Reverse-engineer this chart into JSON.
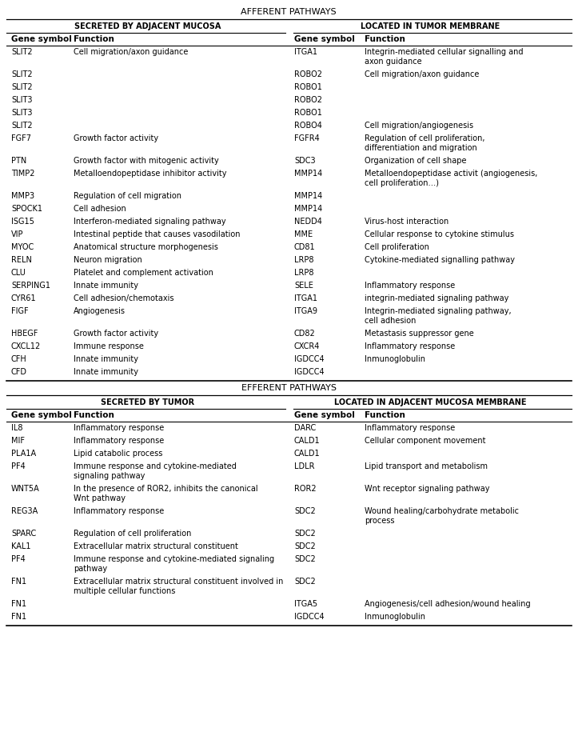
{
  "afferent_header": "AFFERENT PATHWAYS",
  "efferent_header": "EFFERENT PATHWAYS",
  "afferent_left_subheader": "SECRETED BY ADJACENT MUCOSA",
  "afferent_right_subheader": "LOCATED IN TUMOR MEMBRANE",
  "efferent_left_subheader": "SECRETED BY TUMOR",
  "efferent_right_subheader": "LOCATED IN ADJACENT MUCOSA MEMBRANE",
  "col_headers": [
    "Gene symbol",
    "Function",
    "Gene symbol",
    "Function"
  ],
  "afferent_rows": [
    [
      "SLIT2",
      "Cell migration/axon guidance",
      "ITGA1",
      "Integrin-mediated cellular signalling and\naxon guidance"
    ],
    [
      "SLIT2",
      "",
      "ROBO2",
      "Cell migration/axon guidance"
    ],
    [
      "SLIT2",
      "",
      "ROBO1",
      ""
    ],
    [
      "SLIT3",
      "",
      "ROBO2",
      ""
    ],
    [
      "SLIT3",
      "",
      "ROBO1",
      ""
    ],
    [
      "SLIT2",
      "",
      "ROBO4",
      "Cell migration/angiogenesis"
    ],
    [
      "FGF7",
      "Growth factor activity",
      "FGFR4",
      "Regulation of cell proliferation,\ndifferentiation and migration"
    ],
    [
      "PTN",
      "Growth factor with mitogenic activity",
      "SDC3",
      "Organization of cell shape"
    ],
    [
      "TIMP2",
      "Metalloendopeptidase inhibitor activity",
      "MMP14",
      "Metalloendopeptidase activit (angiogenesis,\ncell proliferation…)"
    ],
    [
      "MMP3",
      "Regulation of cell migration",
      "MMP14",
      ""
    ],
    [
      "SPOCK1",
      "Cell adhesion",
      "MMP14",
      ""
    ],
    [
      "ISG15",
      "Interferon-mediated signaling pathway",
      "NEDD4",
      "Virus-host interaction"
    ],
    [
      "VIP",
      "Intestinal peptide that causes vasodilation",
      "MME",
      "Cellular response to cytokine stimulus"
    ],
    [
      "MYOC",
      "Anatomical structure morphogenesis",
      "CD81",
      "Cell proliferation"
    ],
    [
      "RELN",
      "Neuron migration",
      "LRP8",
      "Cytokine-mediated signalling pathway"
    ],
    [
      "CLU",
      "Platelet and complement activation",
      "LRP8",
      ""
    ],
    [
      "SERPING1",
      "Innate immunity",
      "SELE",
      "Inflammatory response"
    ],
    [
      "CYR61",
      "Cell adhesion/chemotaxis",
      "ITGA1",
      "integrin-mediated signaling pathway"
    ],
    [
      "FIGF",
      "Angiogenesis",
      "ITGA9",
      "Integrin-mediated signaling pathway,\ncell adhesion"
    ],
    [
      "HBEGF",
      "Growth factor activity",
      "CD82",
      "Metastasis suppressor gene"
    ],
    [
      "CXCL12",
      "Immune response",
      "CXCR4",
      "Inflammatory response"
    ],
    [
      "CFH",
      "Innate immunity",
      "IGDCC4",
      "Inmunoglobulin"
    ],
    [
      "CFD",
      "Innate immunity",
      "IGDCC4",
      ""
    ]
  ],
  "efferent_rows": [
    [
      "IL8",
      "Inflammatory response",
      "DARC",
      "Inflammatory response"
    ],
    [
      "MIF",
      "Inflammatory response",
      "CALD1",
      "Cellular component movement"
    ],
    [
      "PLA1A",
      "Lipid catabolic process",
      "CALD1",
      ""
    ],
    [
      "PF4",
      "Immune response and cytokine-mediated\nsignaling pathway",
      "LDLR",
      "Lipid transport and metabolism"
    ],
    [
      "WNT5A",
      "In the presence of ROR2, inhibits the canonical\nWnt pathway",
      "ROR2",
      "Wnt receptor signaling pathway"
    ],
    [
      "REG3A",
      "Inflammatory response",
      "SDC2",
      "Wound healing/carbohydrate metabolic\nprocess"
    ],
    [
      "SPARC",
      "Regulation of cell proliferation",
      "SDC2",
      ""
    ],
    [
      "KAL1",
      "Extracellular matrix structural constituent",
      "SDC2",
      ""
    ],
    [
      "PF4",
      "Immune response and cytokine-mediated signaling\npathway",
      "SDC2",
      ""
    ],
    [
      "FN1",
      "Extracellular matrix structural constituent involved in\nmultiple cellular functions",
      "SDC2",
      ""
    ],
    [
      "FN1",
      "",
      "ITGA5",
      "Angiogenesis/cell adhesion/wound healing"
    ],
    [
      "FN1",
      "",
      "IGDCC4",
      "Inmunoglobulin"
    ]
  ],
  "bg_color": "#ffffff",
  "text_color": "#000000",
  "line_color": "#000000"
}
